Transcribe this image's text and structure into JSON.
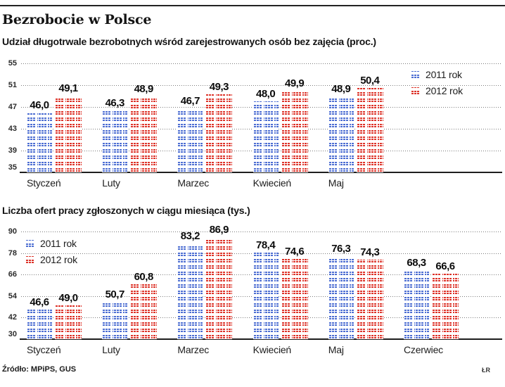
{
  "header": {
    "title": "Bezrobocie w Polsce"
  },
  "footer": {
    "source": "Źródło: MPiPS, GUS",
    "credit": "ŁR"
  },
  "colors": {
    "series_2011": "#4d6ed2",
    "series_2012": "#dd342a",
    "grid": "#7a7a7a",
    "text": "#111111"
  },
  "chart_data": [
    {
      "type": "bar",
      "title": "Udział długotrwale bezrobotnych wśród zarejestrowanych osób bez zajęcia (proc.)",
      "categories": [
        "Styczeń",
        "Luty",
        "Marzec",
        "Kwiecień",
        "Maj"
      ],
      "series": [
        {
          "name": "2011 rok",
          "color": "#4d6ed2",
          "values": [
            46.0,
            46.3,
            46.7,
            48.0,
            48.9
          ]
        },
        {
          "name": "2012 rok",
          "color": "#dd342a",
          "values": [
            49.1,
            48.9,
            49.3,
            49.9,
            50.4
          ]
        }
      ],
      "yticks": [
        55,
        51,
        47,
        43,
        39,
        35
      ],
      "ylim": [
        35,
        56
      ],
      "grid": true,
      "legend_position": "top-right",
      "decimal_separator": ","
    },
    {
      "type": "bar",
      "title": "Liczba ofert pracy zgłoszonych w ciągu miesiąca (tys.)",
      "categories": [
        "Styczeń",
        "Luty",
        "Marzec",
        "Kwiecień",
        "Maj",
        "Czerwiec"
      ],
      "series": [
        {
          "name": "2011 rok",
          "color": "#4d6ed2",
          "values": [
            46.6,
            50.7,
            83.2,
            78.4,
            76.3,
            68.3
          ]
        },
        {
          "name": "2012 rok",
          "color": "#dd342a",
          "values": [
            49.0,
            60.8,
            86.9,
            74.6,
            74.3,
            66.6
          ]
        }
      ],
      "yticks": [
        90,
        78,
        66,
        54,
        42,
        30
      ],
      "ylim": [
        30,
        91.6
      ],
      "grid": true,
      "legend_position": "top-left",
      "decimal_separator": ","
    }
  ]
}
